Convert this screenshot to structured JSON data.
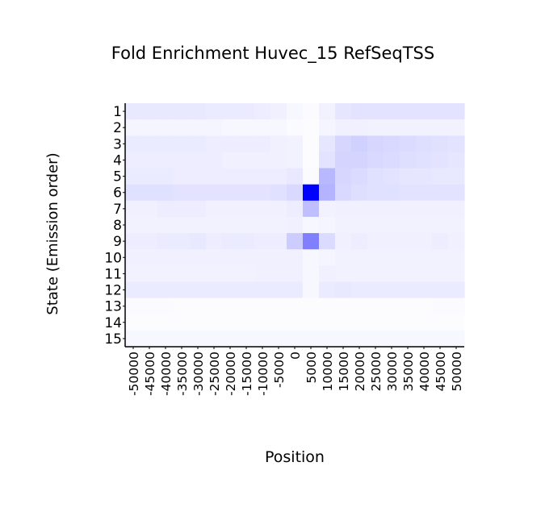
{
  "chart_data": {
    "type": "heatmap",
    "title": "Fold Enrichment Huvec_15 RefSeqTSS",
    "xlabel": "Position",
    "ylabel": "State (Emission order)",
    "x_ticks": [
      "-50000",
      "-45000",
      "-40000",
      "-35000",
      "-30000",
      "-25000",
      "-20000",
      "-15000",
      "-10000",
      "-5000",
      "0",
      "5000",
      "10000",
      "15000",
      "20000",
      "25000",
      "30000",
      "35000",
      "40000",
      "45000",
      "50000"
    ],
    "y_ticks": [
      "1",
      "2",
      "3",
      "4",
      "5",
      "6",
      "7",
      "8",
      "9",
      "10",
      "11",
      "12",
      "13",
      "14",
      "15"
    ],
    "color_low": "#ffffff",
    "color_high": "#0000ff",
    "intensity_scale": [
      0,
      1
    ],
    "values": [
      [
        0.09,
        0.09,
        0.09,
        0.09,
        0.09,
        0.08,
        0.08,
        0.08,
        0.07,
        0.06,
        0.03,
        0.02,
        0.05,
        0.1,
        0.11,
        0.11,
        0.11,
        0.11,
        0.11,
        0.11,
        0.11
      ],
      [
        0.04,
        0.04,
        0.04,
        0.04,
        0.04,
        0.04,
        0.03,
        0.03,
        0.03,
        0.03,
        0.02,
        0.01,
        0.04,
        0.06,
        0.06,
        0.05,
        0.05,
        0.05,
        0.05,
        0.05,
        0.05
      ],
      [
        0.08,
        0.08,
        0.08,
        0.08,
        0.08,
        0.07,
        0.07,
        0.07,
        0.07,
        0.06,
        0.05,
        0.01,
        0.1,
        0.16,
        0.18,
        0.16,
        0.15,
        0.14,
        0.13,
        0.12,
        0.11
      ],
      [
        0.07,
        0.07,
        0.07,
        0.07,
        0.07,
        0.07,
        0.06,
        0.06,
        0.06,
        0.06,
        0.05,
        0.01,
        0.11,
        0.17,
        0.17,
        0.15,
        0.14,
        0.13,
        0.12,
        0.11,
        0.1
      ],
      [
        0.08,
        0.08,
        0.08,
        0.07,
        0.07,
        0.07,
        0.07,
        0.07,
        0.07,
        0.07,
        0.09,
        0.02,
        0.28,
        0.16,
        0.14,
        0.12,
        0.11,
        0.1,
        0.1,
        0.09,
        0.09
      ],
      [
        0.12,
        0.12,
        0.12,
        0.11,
        0.11,
        0.11,
        0.11,
        0.11,
        0.11,
        0.12,
        0.15,
        1.0,
        0.3,
        0.15,
        0.13,
        0.12,
        0.12,
        0.11,
        0.11,
        0.11,
        0.11
      ],
      [
        0.06,
        0.06,
        0.07,
        0.07,
        0.07,
        0.06,
        0.06,
        0.06,
        0.06,
        0.06,
        0.07,
        0.25,
        0.05,
        0.06,
        0.06,
        0.06,
        0.06,
        0.06,
        0.06,
        0.06,
        0.06
      ],
      [
        0.05,
        0.05,
        0.05,
        0.05,
        0.05,
        0.05,
        0.05,
        0.05,
        0.05,
        0.05,
        0.06,
        0.03,
        0.04,
        0.05,
        0.05,
        0.05,
        0.05,
        0.05,
        0.05,
        0.05,
        0.05
      ],
      [
        0.07,
        0.07,
        0.08,
        0.08,
        0.09,
        0.07,
        0.08,
        0.08,
        0.07,
        0.07,
        0.2,
        0.5,
        0.14,
        0.06,
        0.07,
        0.06,
        0.06,
        0.06,
        0.06,
        0.07,
        0.06
      ],
      [
        0.06,
        0.06,
        0.06,
        0.06,
        0.06,
        0.06,
        0.06,
        0.06,
        0.06,
        0.06,
        0.06,
        0.03,
        0.04,
        0.05,
        0.05,
        0.05,
        0.05,
        0.05,
        0.05,
        0.05,
        0.05
      ],
      [
        0.05,
        0.05,
        0.05,
        0.05,
        0.05,
        0.05,
        0.05,
        0.05,
        0.06,
        0.06,
        0.06,
        0.03,
        0.06,
        0.05,
        0.05,
        0.05,
        0.05,
        0.05,
        0.05,
        0.05,
        0.05
      ],
      [
        0.08,
        0.08,
        0.08,
        0.08,
        0.08,
        0.08,
        0.08,
        0.08,
        0.08,
        0.08,
        0.08,
        0.03,
        0.08,
        0.09,
        0.08,
        0.08,
        0.08,
        0.08,
        0.08,
        0.08,
        0.08
      ],
      [
        0.02,
        0.02,
        0.02,
        0.01,
        0.01,
        0.01,
        0.01,
        0.01,
        0.01,
        0.01,
        0.01,
        0.01,
        0.01,
        0.01,
        0.01,
        0.01,
        0.01,
        0.01,
        0.01,
        0.02,
        0.02
      ],
      [
        0.01,
        0.01,
        0.01,
        0.01,
        0.01,
        0.01,
        0.01,
        0.01,
        0.01,
        0.01,
        0.01,
        0.01,
        0.01,
        0.01,
        0.01,
        0.01,
        0.01,
        0.01,
        0.01,
        0.01,
        0.01
      ],
      [
        0.03,
        0.03,
        0.03,
        0.03,
        0.03,
        0.03,
        0.03,
        0.03,
        0.03,
        0.03,
        0.03,
        0.03,
        0.03,
        0.03,
        0.03,
        0.03,
        0.03,
        0.03,
        0.03,
        0.03,
        0.03
      ]
    ]
  }
}
